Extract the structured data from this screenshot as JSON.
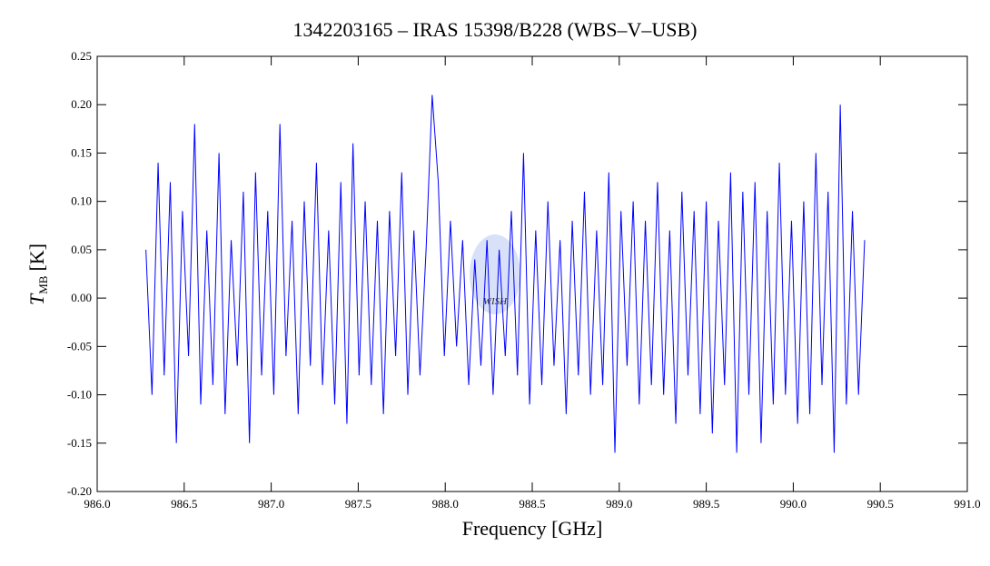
{
  "chart_data": {
    "type": "line",
    "title": "1342203165 – IRAS 15398/B228 (WBS–V–USB)",
    "xlabel": "Frequency [GHz]",
    "ylabel": {
      "symbol": "T",
      "subscript": "MB",
      "unit": "[K]"
    },
    "watermark": "WISH",
    "x": [
      986.28,
      986.315,
      986.35,
      986.385,
      986.42,
      986.455,
      986.49,
      986.525,
      986.56,
      986.595,
      986.63,
      986.665,
      986.7,
      986.735,
      986.77,
      986.805,
      986.84,
      986.875,
      986.91,
      986.945,
      986.98,
      987.015,
      987.05,
      987.085,
      987.12,
      987.155,
      987.19,
      987.225,
      987.26,
      987.295,
      987.33,
      987.365,
      987.4,
      987.435,
      987.47,
      987.505,
      987.54,
      987.575,
      987.61,
      987.645,
      987.68,
      987.715,
      987.75,
      987.785,
      987.82,
      987.855,
      987.89,
      987.925,
      987.96,
      987.995,
      988.03,
      988.065,
      988.1,
      988.135,
      988.17,
      988.205,
      988.24,
      988.275,
      988.31,
      988.345,
      988.38,
      988.415,
      988.45,
      988.485,
      988.52,
      988.555,
      988.59,
      988.625,
      988.66,
      988.695,
      988.73,
      988.765,
      988.8,
      988.835,
      988.87,
      988.905,
      988.94,
      988.975,
      989.01,
      989.045,
      989.08,
      989.115,
      989.15,
      989.185,
      989.22,
      989.255,
      989.29,
      989.325,
      989.36,
      989.395,
      989.43,
      989.465,
      989.5,
      989.535,
      989.57,
      989.605,
      989.64,
      989.675,
      989.71,
      989.745,
      989.78,
      989.815,
      989.85,
      989.885,
      989.92,
      989.955,
      989.99,
      990.025,
      990.06,
      990.095,
      990.13,
      990.165,
      990.2,
      990.235,
      990.27,
      990.305,
      990.34,
      990.375,
      990.41
    ],
    "series": [
      {
        "color": "#0000ff",
        "values": [
          0.05,
          -0.1,
          0.14,
          -0.08,
          0.12,
          -0.15,
          0.09,
          -0.06,
          0.18,
          -0.11,
          0.07,
          -0.09,
          0.15,
          -0.12,
          0.06,
          -0.07,
          0.11,
          -0.15,
          0.13,
          -0.08,
          0.09,
          -0.1,
          0.18,
          -0.06,
          0.08,
          -0.12,
          0.1,
          -0.07,
          0.14,
          -0.09,
          0.07,
          -0.11,
          0.12,
          -0.13,
          0.16,
          -0.08,
          0.1,
          -0.09,
          0.08,
          -0.12,
          0.09,
          -0.06,
          0.13,
          -0.1,
          0.07,
          -0.08,
          0.05,
          0.21,
          0.12,
          -0.06,
          0.08,
          -0.05,
          0.06,
          -0.09,
          0.04,
          -0.07,
          0.06,
          -0.1,
          0.05,
          -0.06,
          0.09,
          -0.08,
          0.15,
          -0.11,
          0.07,
          -0.09,
          0.1,
          -0.07,
          0.06,
          -0.12,
          0.08,
          -0.08,
          0.11,
          -0.1,
          0.07,
          -0.09,
          0.13,
          -0.16,
          0.09,
          -0.07,
          0.1,
          -0.11,
          0.08,
          -0.09,
          0.12,
          -0.1,
          0.07,
          -0.13,
          0.11,
          -0.08,
          0.09,
          -0.12,
          0.1,
          -0.14,
          0.08,
          -0.09,
          0.13,
          -0.16,
          0.11,
          -0.1,
          0.12,
          -0.15,
          0.09,
          -0.11,
          0.14,
          -0.1,
          0.08,
          -0.13,
          0.1,
          -0.12,
          0.15,
          -0.09,
          0.11,
          -0.16,
          0.2,
          -0.11,
          0.09,
          -0.1,
          0.06
        ]
      }
    ],
    "xlim": [
      986.0,
      991.0
    ],
    "xticks": [
      {
        "value": 986,
        "label": "986.0"
      },
      {
        "value": 986.5,
        "label": "986.5"
      },
      {
        "value": 987,
        "label": "987.0"
      },
      {
        "value": 987.5,
        "label": "987.5"
      },
      {
        "value": 988,
        "label": "988.0"
      },
      {
        "value": 988.5,
        "label": "988.5"
      },
      {
        "value": 989,
        "label": "989.0"
      },
      {
        "value": 989.5,
        "label": "989.5"
      },
      {
        "value": 990,
        "label": "990.0"
      },
      {
        "value": 990.5,
        "label": "990.5"
      },
      {
        "value": 991,
        "label": "991.0"
      }
    ],
    "ylim": [
      -0.2,
      0.25
    ],
    "yticks": [
      {
        "value": -0.2,
        "label": "-0.20"
      },
      {
        "value": -0.15,
        "label": "-0.15"
      },
      {
        "value": -0.1,
        "label": "-0.10"
      },
      {
        "value": -0.05,
        "label": "-0.05"
      },
      {
        "value": 0,
        "label": "0.00"
      },
      0.05,
      {
        "value": 0.1,
        "label": "0.10"
      },
      0.15,
      {
        "value": 0.2,
        "label": "0.20"
      },
      0.25
    ]
  }
}
